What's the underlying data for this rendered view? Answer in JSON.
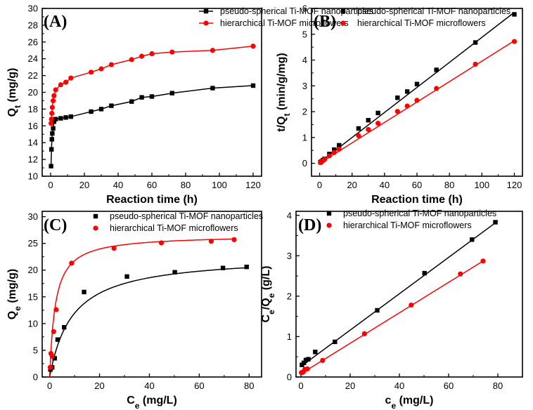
{
  "chart_data": [
    {
      "panel": "(A)",
      "type": "scatter",
      "xlabel": "Reaction time (h)",
      "ylabel_main": "Q",
      "ylabel_sub": "t",
      "ylabel_unit": " (mg/g)",
      "xlim": [
        -5,
        125
      ],
      "ylim": [
        10,
        30
      ],
      "xticks": [
        0,
        20,
        40,
        60,
        80,
        100,
        120
      ],
      "yticks": [
        10,
        12,
        14,
        16,
        18,
        20,
        22,
        24,
        26,
        28,
        30
      ],
      "legend_position": "top-right",
      "series": [
        {
          "name": "pseudo-spherical Ti-MOF nanoparticles",
          "color": "#000000",
          "marker": "square",
          "line": "connect",
          "x": [
            0.25,
            0.5,
            0.75,
            1,
            1.5,
            2,
            3,
            6,
            9,
            12,
            24,
            30,
            36,
            48,
            54,
            60,
            72,
            96,
            120
          ],
          "y": [
            11.2,
            13.2,
            14.4,
            15.1,
            15.7,
            16.5,
            16.8,
            16.9,
            17.0,
            17.1,
            17.7,
            18.0,
            18.4,
            18.9,
            19.4,
            19.5,
            19.9,
            20.5,
            20.8
          ]
        },
        {
          "name": "hierarchical Ti-MOF microflowers",
          "color": "#ff0000",
          "marker": "circle",
          "line": "connect",
          "x": [
            0.25,
            0.5,
            0.75,
            1,
            1.5,
            2,
            3,
            6,
            9,
            12,
            24,
            30,
            36,
            48,
            54,
            60,
            72,
            96,
            120
          ],
          "y": [
            16.3,
            16.8,
            17.5,
            18.2,
            19.0,
            19.6,
            20.3,
            20.9,
            21.2,
            21.7,
            22.4,
            22.8,
            23.3,
            23.9,
            24.3,
            24.6,
            24.8,
            25.0,
            25.5
          ]
        }
      ]
    },
    {
      "panel": "(B)",
      "type": "scatter",
      "xlabel": "Reaction time (h)",
      "ylabel_main": "t/Q",
      "ylabel_sub": "t",
      "ylabel_unit": " (min/g/mg)",
      "xlim": [
        -5,
        125
      ],
      "ylim": [
        -0.5,
        6
      ],
      "xticks": [
        0,
        20,
        40,
        60,
        80,
        100,
        120
      ],
      "yticks": [
        0,
        1,
        2,
        3,
        4,
        5,
        6
      ],
      "legend_position": "top-left",
      "series": [
        {
          "name": "pseudo-spherical Ti-MOF nanoparticles",
          "color": "#000000",
          "marker": "square",
          "line": "fit",
          "fit": [
            [
              0,
              0.03
            ],
            [
              120,
              5.85
            ]
          ],
          "x": [
            0.5,
            1,
            2,
            3,
            6,
            9,
            12,
            24,
            30,
            36,
            48,
            54,
            60,
            72,
            96,
            120
          ],
          "y": [
            0.04,
            0.07,
            0.12,
            0.17,
            0.36,
            0.53,
            0.7,
            1.35,
            1.67,
            1.95,
            2.54,
            2.78,
            3.07,
            3.62,
            4.68,
            5.77
          ]
        },
        {
          "name": "hierarchical Ti-MOF microflowers",
          "color": "#ff0000",
          "marker": "circle",
          "line": "fit",
          "fit": [
            [
              0,
              0.0
            ],
            [
              120,
              4.75
            ]
          ],
          "x": [
            0.5,
            1,
            2,
            3,
            6,
            9,
            12,
            24,
            30,
            36,
            48,
            54,
            60,
            72,
            96,
            120
          ],
          "y": [
            0.03,
            0.05,
            0.1,
            0.15,
            0.29,
            0.42,
            0.55,
            1.07,
            1.31,
            1.55,
            2.01,
            2.22,
            2.44,
            2.9,
            3.84,
            4.72
          ]
        }
      ]
    },
    {
      "panel": "(C)",
      "type": "scatter",
      "xlabel_main": "C",
      "xlabel_sub": "e",
      "xlabel_unit": " (mg/L)",
      "ylabel_main": "Q",
      "ylabel_sub": "e",
      "ylabel_unit": " (mg/g)",
      "xlim": [
        -3,
        85
      ],
      "ylim": [
        0,
        31
      ],
      "xticks": [
        0,
        20,
        40,
        60,
        80
      ],
      "yticks": [
        0,
        5,
        10,
        15,
        20,
        25,
        30
      ],
      "legend_position": "top-right",
      "series": [
        {
          "name": "pseudo-spherical Ti-MOF nanoparticles",
          "color": "#000000",
          "marker": "square",
          "line": "langmuir",
          "qmax": 22.8,
          "kl": 0.11,
          "x": [
            0.3,
            1.0,
            2.0,
            3.2,
            5.8,
            13.8,
            31.0,
            50.2,
            69.5,
            79.0
          ],
          "y": [
            1.4,
            1.8,
            3.5,
            7.0,
            9.3,
            15.9,
            18.8,
            19.6,
            20.4,
            20.6
          ]
        },
        {
          "name": "hierarchical Ti-MOF microflowers",
          "color": "#ff0000",
          "marker": "circle",
          "line": "langmuir",
          "qmax": 26.6,
          "kl": 0.45,
          "x": [
            0.2,
            0.5,
            1.0,
            1.6,
            2.6,
            8.8,
            25.8,
            44.8,
            64.8,
            74.0
          ],
          "y": [
            1.8,
            4.4,
            3.9,
            8.5,
            12.6,
            21.3,
            24.1,
            25.1,
            25.4,
            25.7
          ]
        }
      ]
    },
    {
      "panel": "(D)",
      "type": "scatter",
      "xlabel_main": "c",
      "xlabel_sub": "e",
      "xlabel_unit": " (mg/L)",
      "ylabel_main": "C",
      "ylabel_sub": "e",
      "ylabel_mid": "/Q",
      "ylabel_sub2": "e",
      "ylabel_unit": " (g/L)",
      "xlim": [
        -2,
        90
      ],
      "ylim": [
        0,
        4.1
      ],
      "xticks": [
        0,
        20,
        40,
        60,
        80
      ],
      "yticks": [
        0,
        1,
        2,
        3,
        4
      ],
      "legend_position": "top-left",
      "series": [
        {
          "name": "pseudo-spherical Ti-MOF nanoparticles",
          "color": "#000000",
          "marker": "square",
          "line": "fit",
          "fit": [
            [
              0,
              0.26
            ],
            [
              80,
              3.86
            ]
          ],
          "x": [
            0.4,
            1.2,
            2.0,
            3.0,
            5.8,
            13.8,
            31.0,
            50.2,
            69.5,
            79.0
          ],
          "y": [
            0.3,
            0.35,
            0.42,
            0.44,
            0.62,
            0.87,
            1.65,
            2.57,
            3.4,
            3.83
          ]
        },
        {
          "name": "hierarchical Ti-MOF microflowers",
          "color": "#ff0000",
          "marker": "circle",
          "line": "fit",
          "fit": [
            [
              0,
              0.08
            ],
            [
              74,
              2.87
            ]
          ],
          "x": [
            0.2,
            0.5,
            1.0,
            1.6,
            2.6,
            8.8,
            25.8,
            44.8,
            64.8,
            74.0
          ],
          "y": [
            0.11,
            0.11,
            0.13,
            0.19,
            0.2,
            0.41,
            1.07,
            1.78,
            2.55,
            2.87
          ]
        }
      ]
    }
  ]
}
